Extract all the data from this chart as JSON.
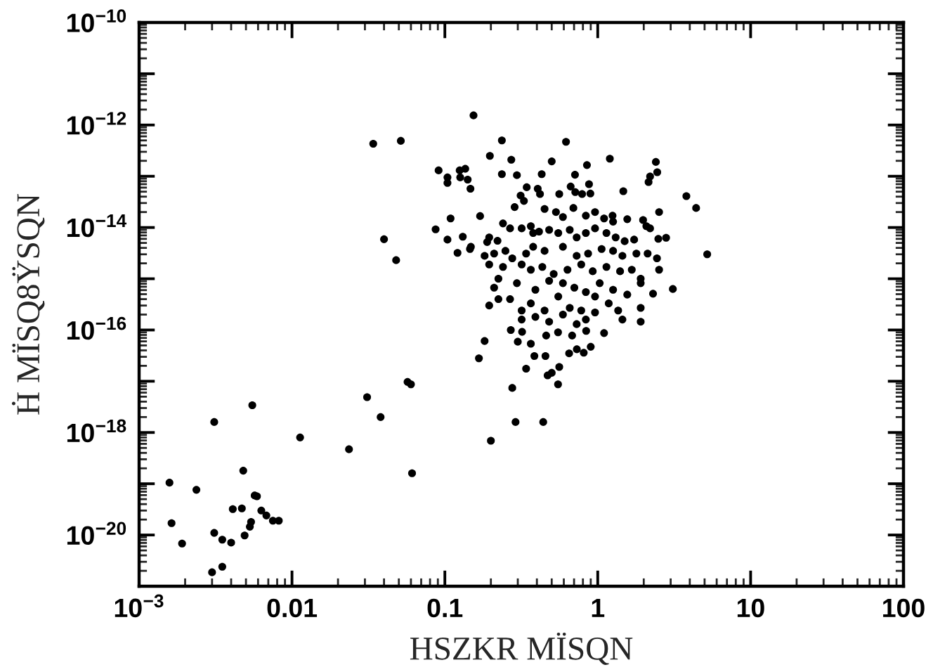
{
  "chart_data": {
    "type": "scatter",
    "xlabel": "HSZKR MÏSQN",
    "ylabel": "Ḣ MÏSQ8ŸSQN",
    "log": "xy",
    "marker": "circle",
    "xlim": [
      0.001,
      100
    ],
    "ylim": [
      1e-21,
      1e-10
    ],
    "xticks": [
      {
        "value": 0.001,
        "label": "10$^{−3}$"
      },
      0.01,
      0.1,
      1,
      10,
      100
    ],
    "yticks": [
      {
        "value": 1e-10,
        "label": "10$^{−10}$"
      },
      {
        "value": 1e-11,
        "label": null
      },
      {
        "value": 1e-12,
        "label": "10$^{−12}$"
      },
      {
        "value": 1e-13,
        "label": null
      },
      {
        "value": 1e-14,
        "label": "10$^{−14}$"
      },
      {
        "value": 1e-15,
        "label": null
      },
      {
        "value": 1e-16,
        "label": "10$^{−16}$"
      },
      {
        "value": 1e-17,
        "label": null
      },
      {
        "value": 1e-18,
        "label": "10$^{−18}$"
      },
      {
        "value": 1e-19,
        "label": null
      },
      {
        "value": 1e-20,
        "label": "10$^{−20}$"
      }
    ],
    "series": [
      {
        "color": "#000000",
        "x": [
          0.00158,
          0.00163,
          0.00191,
          0.00237,
          0.0031,
          0.003,
          0.0031,
          0.0035,
          0.0035,
          0.004,
          0.0041,
          0.0047,
          0.0048,
          0.0049,
          0.0053,
          0.0054,
          0.0055,
          0.0057,
          0.0059,
          0.0063,
          0.0068,
          0.0075,
          0.0082,
          0.0113,
          0.0236,
          0.031,
          0.038,
          0.057,
          0.06,
          0.061,
          0.167,
          0.182,
          0.2,
          0.276,
          0.29,
          0.44,
          0.34,
          0.385,
          0.455,
          0.47,
          0.55,
          0.5,
          0.56,
          0.154,
          0.034,
          0.0515,
          0.236,
          0.62,
          0.197,
          0.272,
          0.5,
          0.85,
          1.2,
          2.4,
          2.45,
          2.2,
          2.15,
          0.091,
          0.125,
          0.136,
          0.126,
          0.141,
          0.147,
          0.104,
          0.104,
          0.236,
          0.296,
          0.43,
          0.71,
          1.47,
          3.8,
          4.4,
          5.2,
          3.1,
          2.3,
          0.109,
          0.17,
          0.087,
          0.04,
          0.048,
          0.104,
          0.121,
          0.131,
          0.146,
          2.8,
          0.27,
          0.32,
          0.365,
          0.3,
          0.46,
          0.55,
          0.68,
          0.84,
          1.1,
          0.73,
          0.9,
          0.65,
          0.81,
          0.343,
          0.405,
          0.419,
          0.313,
          0.329,
          0.56,
          0.665,
          0.713,
          0.79,
          0.877,
          0.895,
          0.286,
          0.449,
          0.533,
          0.592,
          0.693,
          0.836,
          0.96,
          1.1,
          1.25,
          1.26,
          1.56,
          1.98,
          2.52,
          2.08,
          0.24,
          0.267,
          0.318,
          0.365,
          0.378,
          0.413,
          0.481,
          0.552,
          0.656,
          0.728,
          0.836,
          0.96,
          1.14,
          1.31,
          1.5,
          1.73,
          2.2,
          2.49,
          0.195,
          0.189,
          0.148,
          0.221,
          0.182,
          0.21,
          0.249,
          0.276,
          0.34,
          0.378,
          0.449,
          0.592,
          0.728,
          0.865,
          1.06,
          1.26,
          1.45,
          1.79,
          2.12,
          2.44,
          0.195,
          0.24,
          0.318,
          0.365,
          0.434,
          0.515,
          0.634,
          0.78,
          0.927,
          1.14,
          1.4,
          1.67,
          1.91,
          2.52,
          0.21,
          0.224,
          0.296,
          0.391,
          0.481,
          0.592,
          0.703,
          0.836,
          1.03,
          1.26,
          1.56,
          1.91,
          0.195,
          0.224,
          0.267,
          0.318,
          0.365,
          0.449,
          0.552,
          0.656,
          0.78,
          0.96,
          1.18,
          1.36,
          1.91,
          0.318,
          0.391,
          0.481,
          0.592,
          0.728,
          0.836,
          0.96,
          1.45,
          1.91
        ],
        "values": [
          1.05e-19,
          1.7e-20,
          6.8e-21,
          7.6e-20,
          1.6e-18,
          1.87e-21,
          1.1e-20,
          8.1e-21,
          2.4e-21,
          7.1e-21,
          3.2e-20,
          3.3e-20,
          1.8e-19,
          9.8e-21,
          1.45e-20,
          1.8e-20,
          3.4e-18,
          5.9e-20,
          5.7e-20,
          3e-20,
          2.4e-20,
          1.9e-20,
          1.9e-20,
          8e-19,
          4.7e-19,
          4.9e-18,
          2e-18,
          9.7e-18,
          8.7e-18,
          1.6e-19,
          2.8e-17,
          6.1e-17,
          6.9e-19,
          7.4e-18,
          1.6e-18,
          1.6e-18,
          1.76e-17,
          3.1e-17,
          3.1e-17,
          1.3e-17,
          8.7e-18,
          1.46e-17,
          1.9e-17,
          1.54e-12,
          4.3e-13,
          4.9e-13,
          5e-13,
          4.7e-13,
          2.5e-13,
          2.1e-13,
          1.95e-13,
          1.65e-13,
          2.2e-13,
          1.9e-13,
          1.2e-13,
          9.9e-14,
          7.7e-14,
          1.3e-13,
          1.3e-13,
          1.4e-13,
          9.5e-14,
          8.6e-14,
          5.7e-14,
          9.5e-14,
          7.4e-14,
          1.1e-13,
          1.05e-13,
          1.1e-13,
          1.07e-13,
          5.1e-14,
          4.1e-14,
          2.4e-14,
          3e-15,
          6.3e-16,
          5.1e-16,
          1.5e-14,
          1.67e-14,
          9.2e-15,
          5.9e-15,
          2.3e-15,
          5.8e-15,
          3.2e-15,
          6.6e-15,
          3.8e-15,
          6.3e-15,
          1e-16,
          9.2e-17,
          5.4e-17,
          5.9e-17,
          7.8e-17,
          9e-17,
          7.8e-17,
          9.6e-17,
          8.7e-17,
          4.2e-17,
          4.7e-17,
          3.5e-17,
          3.6e-17,
          6.1e-14,
          5.7e-14,
          4.5e-14,
          4.2e-14,
          3.3e-14,
          4.5e-14,
          6.3e-14,
          4.9e-14,
          4.5e-14,
          7e-14,
          4.6e-14,
          2.5e-14,
          2.3e-14,
          2e-14,
          1.6e-14,
          2.4e-14,
          1.7e-14,
          2e-14,
          1.5e-14,
          1.7e-14,
          1.3e-14,
          1.45e-14,
          1.4e-14,
          2e-14,
          1.06e-14,
          1.2e-14,
          9.6e-15,
          9.6e-15,
          1.06e-14,
          7.8e-15,
          8.3e-15,
          9e-15,
          7.8e-15,
          9e-15,
          6.4e-15,
          7.8e-15,
          9.6e-15,
          7.8e-15,
          6.4e-15,
          5.4e-15,
          5.8e-15,
          9.6e-15,
          6e-15,
          6.4e-15,
          5.2e-15,
          4.2e-15,
          5.5e-15,
          2.8e-15,
          3.1e-15,
          3.5e-15,
          2.5e-15,
          3.1e-15,
          4.2e-15,
          3.5e-15,
          4.2e-15,
          2.8e-15,
          3.1e-15,
          3.8e-15,
          3.5e-15,
          2.8e-15,
          3.1e-15,
          3.1e-15,
          2.5e-15,
          1.9e-15,
          1.7e-15,
          1.9e-15,
          1.5e-15,
          1.7e-15,
          1.24e-15,
          1.5e-15,
          1.9e-15,
          1.4e-15,
          1.7e-15,
          1.4e-15,
          1.5e-15,
          1e-15,
          1.5e-15,
          6.7e-16,
          1e-15,
          8.2e-16,
          6.1e-16,
          9.1e-16,
          8.2e-16,
          6.7e-16,
          5.5e-16,
          8.2e-16,
          6.1e-16,
          4.9e-16,
          8.2e-16,
          3e-16,
          4e-16,
          4e-16,
          2.4e-16,
          3.3e-16,
          2.4e-16,
          4.5e-16,
          2.7e-16,
          2.4e-16,
          4.5e-16,
          3.3e-16,
          2.4e-16,
          2.7e-16,
          1.6e-16,
          1.8e-16,
          1.45e-16,
          2e-16,
          1.3e-16,
          1.6e-16,
          2.2e-16,
          1.6e-16,
          1.45e-16
        ]
      }
    ]
  }
}
